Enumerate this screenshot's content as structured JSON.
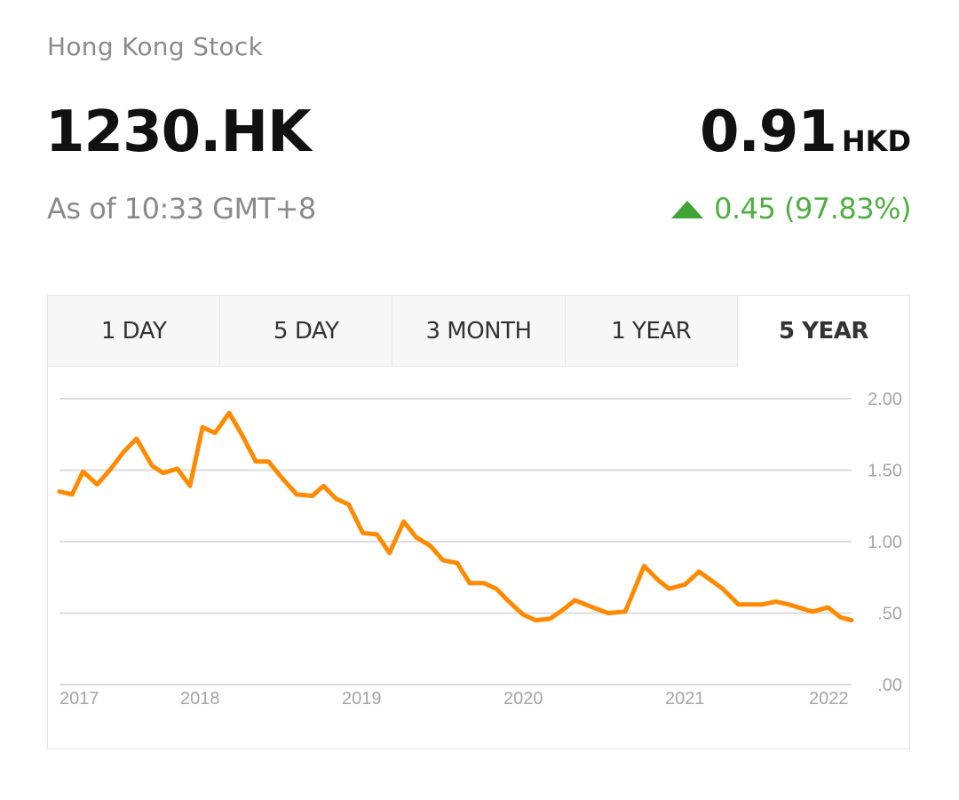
{
  "header": {
    "category": "Hong Kong Stock",
    "ticker": "1230.HK",
    "as_of": "As of 10:33 GMT+8",
    "price": "0.91",
    "currency": "HKD",
    "change": "0.45 (97.83%)",
    "change_direction_icon": "up-triangle-icon",
    "change_color": "#4caf3f"
  },
  "tabs": [
    {
      "label": "1 DAY",
      "active": false
    },
    {
      "label": "5 DAY",
      "active": false
    },
    {
      "label": "3 MONTH",
      "active": false
    },
    {
      "label": "1 YEAR",
      "active": false
    },
    {
      "label": "5 YEAR",
      "active": true
    }
  ],
  "chart_data": {
    "type": "line",
    "title": "",
    "xlabel": "",
    "ylabel": "",
    "ylim": [
      0,
      2
    ],
    "grid": true,
    "legend": null,
    "line_color": "#ff8a00",
    "y_ticks": [
      "2.00",
      "1.50",
      "1.00",
      ".50",
      ".00"
    ],
    "x_ticks": [
      "2017",
      "2018",
      "2019",
      "2020",
      "2021",
      "2022"
    ],
    "series": [
      {
        "name": "1230.HK",
        "x": [
          2017.0,
          2017.08,
          2017.15,
          2017.24,
          2017.32,
          2017.41,
          2017.49,
          2017.59,
          2017.66,
          2017.75,
          2017.83,
          2017.91,
          2017.99,
          2018.08,
          2018.16,
          2018.25,
          2018.33,
          2018.42,
          2018.51,
          2018.61,
          2018.68,
          2018.76,
          2018.84,
          2018.93,
          2019.02,
          2019.1,
          2019.19,
          2019.27,
          2019.36,
          2019.44,
          2019.53,
          2019.61,
          2019.7,
          2019.78,
          2019.86,
          2019.95,
          2020.03,
          2020.12,
          2020.2,
          2020.28,
          2020.37,
          2020.49,
          2020.6,
          2020.72,
          2020.81,
          2020.88,
          2020.98,
          2021.07,
          2021.22,
          2021.32,
          2021.47,
          2021.56,
          2021.64,
          2021.79,
          2021.89,
          2021.97,
          2022.04
        ],
        "values": [
          1.35,
          1.33,
          1.49,
          1.4,
          1.5,
          1.63,
          1.72,
          1.53,
          1.48,
          1.51,
          1.39,
          1.8,
          1.76,
          1.9,
          1.75,
          1.56,
          1.56,
          1.44,
          1.33,
          1.32,
          1.39,
          1.3,
          1.26,
          1.06,
          1.05,
          0.92,
          1.14,
          1.03,
          0.97,
          0.87,
          0.85,
          0.71,
          0.71,
          0.67,
          0.58,
          0.49,
          0.45,
          0.46,
          0.52,
          0.59,
          0.55,
          0.5,
          0.51,
          0.83,
          0.73,
          0.67,
          0.7,
          0.79,
          0.67,
          0.56,
          0.56,
          0.58,
          0.56,
          0.51,
          0.54,
          0.47,
          0.45
        ]
      }
    ]
  }
}
